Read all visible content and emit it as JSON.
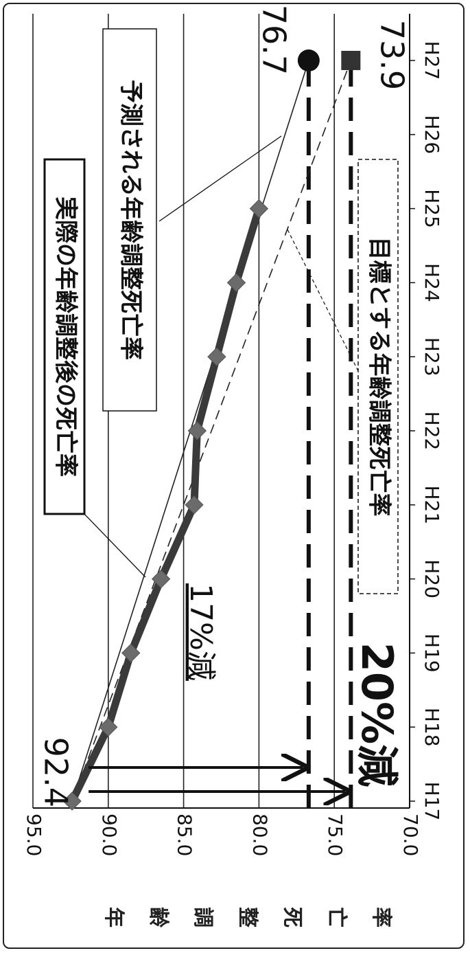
{
  "chart_data": {
    "type": "line",
    "title": "",
    "ylabel": "年齢調整死亡率",
    "ylabel_chars": [
      "年",
      "齢",
      "調",
      "整",
      "死",
      "亡",
      "率"
    ],
    "ylim": [
      70.0,
      95.0
    ],
    "yticks": [
      "95.0",
      "90.0",
      "85.0",
      "80.0",
      "75.0",
      "70.0"
    ],
    "categories": [
      "H17",
      "H18",
      "H19",
      "H20",
      "H21",
      "H22",
      "H23",
      "H24",
      "H25",
      "H26",
      "H27"
    ],
    "grid": true,
    "series": [
      {
        "name": "実際の年齢調整後の死亡率",
        "style": "thick-solid-with-markers",
        "x": [
          "H17",
          "H18",
          "H19",
          "H20",
          "H21",
          "H22",
          "H23",
          "H24",
          "H25"
        ],
        "values": [
          92.4,
          90.0,
          88.5,
          86.5,
          84.3,
          84.1,
          82.8,
          81.5,
          80.0
        ]
      },
      {
        "name": "予測される年齢調整死亡率",
        "style": "thin-solid",
        "x": [
          "H17",
          "H27"
        ],
        "values": [
          92.4,
          76.7
        ]
      },
      {
        "name": "目標とする年齢調整死亡率",
        "style": "thin-dashed",
        "x": [
          "H17",
          "H27"
        ],
        "values": [
          92.4,
          73.9
        ]
      }
    ],
    "reference_lines": [
      {
        "value": 76.7,
        "style": "thick-dashed"
      },
      {
        "value": 73.9,
        "style": "thick-dashed"
      }
    ],
    "annotations": {
      "start_value": "92.4",
      "predicted_end": "76.7",
      "target_end": "73.9",
      "reduction_predicted": "17%減",
      "reduction_target": "20%減"
    }
  },
  "colors": {
    "actual_line": "#3a3a3a",
    "marker": "#6b6b6b",
    "grid": "#222222",
    "predicted_marker": "#111111",
    "target_marker": "#333333"
  }
}
